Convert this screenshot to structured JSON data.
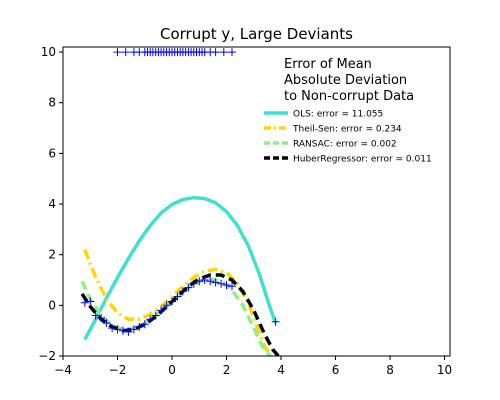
{
  "chart_data": {
    "type": "scatter",
    "title": "Corrupt y, Large Deviants",
    "xlabel": "",
    "ylabel": "",
    "xlim": [
      -4,
      10.2
    ],
    "ylim": [
      -2,
      10.2
    ],
    "x_ticks": [
      "−4",
      "−2",
      "0",
      "2",
      "4",
      "6",
      "8",
      "10"
    ],
    "y_ticks": [
      "−2",
      "0",
      "2",
      "4",
      "6",
      "8",
      "10"
    ],
    "grid": false,
    "legend": {
      "position": "upper-right",
      "title": [
        "Error of Mean",
        "Absolute Deviation",
        "to Non-corrupt Data"
      ],
      "entries": [
        {
          "label": "OLS: error = 11.055",
          "color": "#40e0d0",
          "dash": "solid"
        },
        {
          "label": "Theil-Sen: error = 0.234",
          "color": "#ffd700",
          "dash": "dashdot"
        },
        {
          "label": "RANSAC: error = 0.002",
          "color": "#90ee90",
          "dash": "dashed"
        },
        {
          "label": "HuberRegressor: error = 0.011",
          "color": "#000000",
          "dash": "dashed"
        }
      ]
    },
    "scatter": {
      "color": "#0000ff",
      "marker": "+",
      "main_points": [
        [
          -3.2,
          0.1
        ],
        [
          -3.0,
          0.15
        ],
        [
          -2.8,
          -0.4
        ],
        [
          -2.6,
          -0.5
        ],
        [
          -2.4,
          -0.7
        ],
        [
          -2.2,
          -0.9
        ],
        [
          -2.0,
          -0.95
        ],
        [
          -1.8,
          -1.0
        ],
        [
          -1.6,
          -1.05
        ],
        [
          -1.4,
          -0.95
        ],
        [
          -1.2,
          -0.85
        ],
        [
          -1.0,
          -0.75
        ],
        [
          -0.8,
          -0.55
        ],
        [
          -0.6,
          -0.4
        ],
        [
          -0.4,
          -0.2
        ],
        [
          -0.2,
          0.0
        ],
        [
          0.0,
          0.15
        ],
        [
          0.2,
          0.35
        ],
        [
          0.4,
          0.55
        ],
        [
          0.6,
          0.7
        ],
        [
          0.8,
          0.85
        ],
        [
          1.0,
          0.95
        ],
        [
          1.2,
          1.0
        ],
        [
          1.4,
          0.95
        ],
        [
          1.6,
          0.9
        ],
        [
          1.8,
          0.85
        ],
        [
          2.0,
          0.8
        ],
        [
          2.2,
          0.75
        ],
        [
          3.8,
          -0.65
        ]
      ],
      "outliers": {
        "y": 10.0,
        "x": [
          -2.0,
          -1.7,
          -1.4,
          -1.2,
          -1.0,
          -0.9,
          -0.8,
          -0.7,
          -0.6,
          -0.5,
          -0.4,
          -0.3,
          -0.2,
          -0.1,
          0.0,
          0.1,
          0.2,
          0.3,
          0.4,
          0.5,
          0.6,
          0.7,
          0.8,
          0.9,
          1.0,
          1.1,
          1.2,
          1.4,
          1.6,
          1.9,
          2.2
        ]
      }
    },
    "series": [
      {
        "name": "OLS: error = 11.055",
        "color": "#40e0d0",
        "dash": "solid",
        "x": [
          -3.2,
          -2.8,
          -2.4,
          -2.0,
          -1.6,
          -1.2,
          -0.8,
          -0.4,
          0.0,
          0.4,
          0.8,
          1.2,
          1.6,
          2.0,
          2.4,
          2.8,
          3.2,
          3.6,
          3.8
        ],
        "y": [
          -1.35,
          -0.55,
          0.3,
          1.1,
          1.85,
          2.55,
          3.15,
          3.65,
          3.98,
          4.18,
          4.25,
          4.22,
          4.05,
          3.7,
          3.15,
          2.35,
          1.25,
          -0.1,
          -0.7
        ]
      },
      {
        "name": "Theil-Sen: error = 0.234",
        "color": "#ffd700",
        "dash": "dashdot",
        "x": [
          -3.2,
          -2.8,
          -2.4,
          -2.0,
          -1.6,
          -1.2,
          -0.8,
          -0.4,
          0.0,
          0.4,
          0.8,
          1.2,
          1.6,
          2.0,
          2.4,
          2.8,
          3.2,
          3.4,
          3.6
        ],
        "y": [
          2.2,
          1.1,
          0.25,
          -0.3,
          -0.55,
          -0.55,
          -0.35,
          -0.05,
          0.35,
          0.75,
          1.1,
          1.35,
          1.42,
          1.3,
          0.85,
          0.1,
          -1.05,
          -1.6,
          -2.0
        ]
      },
      {
        "name": "RANSAC: error = 0.002",
        "color": "#90ee90",
        "dash": "dashed",
        "x": [
          -3.3,
          -3.0,
          -2.6,
          -2.2,
          -1.8,
          -1.4,
          -1.0,
          -0.6,
          -0.2,
          0.2,
          0.6,
          1.0,
          1.4,
          1.8,
          2.2,
          2.6,
          3.0,
          3.3,
          3.6
        ],
        "y": [
          0.95,
          0.25,
          -0.4,
          -0.8,
          -0.95,
          -0.9,
          -0.7,
          -0.4,
          -0.05,
          0.35,
          0.7,
          0.95,
          1.05,
          0.95,
          0.6,
          0.0,
          -0.9,
          -1.6,
          -2.0
        ]
      },
      {
        "name": "HuberRegressor: error = 0.011",
        "color": "#000000",
        "dash": "dashed",
        "x": [
          -3.3,
          -3.0,
          -2.6,
          -2.2,
          -1.8,
          -1.4,
          -1.0,
          -0.6,
          -0.2,
          0.2,
          0.6,
          1.0,
          1.4,
          1.8,
          2.2,
          2.6,
          3.0,
          3.4,
          3.7,
          3.9
        ],
        "y": [
          0.45,
          -0.05,
          -0.55,
          -0.85,
          -1.0,
          -0.95,
          -0.75,
          -0.45,
          -0.05,
          0.35,
          0.75,
          1.05,
          1.2,
          1.2,
          1.0,
          0.55,
          -0.2,
          -1.15,
          -1.75,
          -2.0
        ]
      }
    ]
  }
}
